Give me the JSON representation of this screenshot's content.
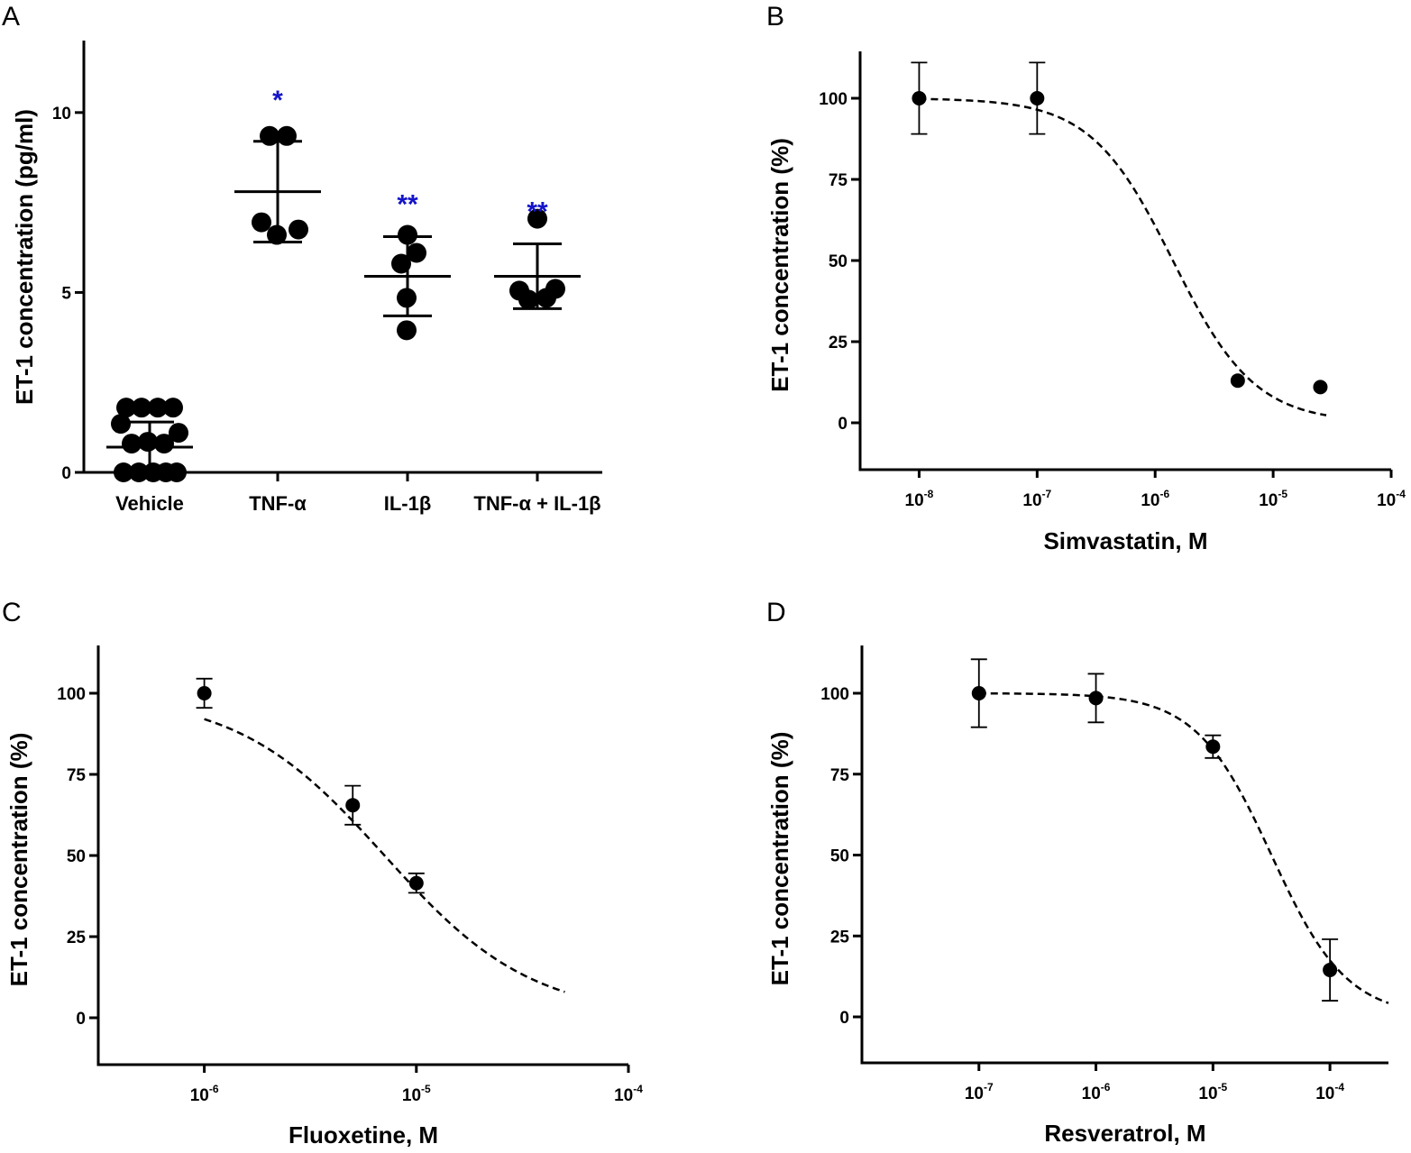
{
  "chart_data": [
    {
      "panel": "A",
      "type": "scatter",
      "ylabel": "ET-1 concentration (pg/ml)",
      "ylim": [
        0,
        12
      ],
      "yticks": [
        0,
        5,
        10
      ],
      "categories": [
        "Vehicle",
        "TNF-α",
        "IL-1β",
        "TNF-α + IL-1β"
      ],
      "groups": [
        {
          "name": "Vehicle",
          "mean": 0.7,
          "sd_low": 0.05,
          "sd_high": 1.4,
          "points": [
            {
              "offset": -0.26,
              "y": 1.8
            },
            {
              "offset": -0.09,
              "y": 1.8
            },
            {
              "offset": 0.09,
              "y": 1.8
            },
            {
              "offset": 0.26,
              "y": 1.8
            },
            {
              "offset": -0.32,
              "y": 1.35
            },
            {
              "offset": 0.32,
              "y": 1.1
            },
            {
              "offset": -0.2,
              "y": 0.8
            },
            {
              "offset": -0.02,
              "y": 0.85
            },
            {
              "offset": 0.16,
              "y": 0.8
            },
            {
              "offset": -0.29,
              "y": 0.0
            },
            {
              "offset": -0.12,
              "y": 0.0
            },
            {
              "offset": 0.04,
              "y": 0.0
            },
            {
              "offset": 0.18,
              "y": 0.0
            },
            {
              "offset": 0.3,
              "y": 0.0
            }
          ],
          "annotation": ""
        },
        {
          "name": "TNF-α",
          "mean": 7.8,
          "sd_low": 6.4,
          "sd_high": 9.2,
          "points": [
            {
              "offset": -0.09,
              "y": 9.35
            },
            {
              "offset": 0.1,
              "y": 9.35
            },
            {
              "offset": -0.18,
              "y": 6.95
            },
            {
              "offset": 0.23,
              "y": 6.75
            },
            {
              "offset": -0.01,
              "y": 6.6
            }
          ],
          "annotation": "*"
        },
        {
          "name": "IL-1β",
          "mean": 5.45,
          "sd_low": 4.35,
          "sd_high": 6.55,
          "points": [
            {
              "offset": 0.0,
              "y": 6.6
            },
            {
              "offset": -0.07,
              "y": 5.8
            },
            {
              "offset": 0.1,
              "y": 6.1
            },
            {
              "offset": -0.01,
              "y": 4.85
            },
            {
              "offset": -0.01,
              "y": 3.95
            }
          ],
          "annotation": "**"
        },
        {
          "name": "TNF-α + IL-1β",
          "mean": 5.45,
          "sd_low": 4.55,
          "sd_high": 6.35,
          "points": [
            {
              "offset": 0.0,
              "y": 7.05
            },
            {
              "offset": -0.2,
              "y": 5.05
            },
            {
              "offset": 0.2,
              "y": 5.1
            },
            {
              "offset": -0.1,
              "y": 4.8
            },
            {
              "offset": 0.1,
              "y": 4.85
            }
          ],
          "annotation": "**"
        }
      ]
    },
    {
      "panel": "B",
      "type": "scatter",
      "xlabel": "Simvastatin, M",
      "ylabel": "ET-1 concentration (%)",
      "xscale": "log",
      "xlim_exp": [
        -8.5,
        -4
      ],
      "ylim": [
        -15,
        115
      ],
      "xticks_exp": [
        -8,
        -7,
        -6,
        -5,
        -4
      ],
      "yticks": [
        0,
        25,
        50,
        75,
        100
      ],
      "points": [
        {
          "x_exp": -8.0,
          "y": 100,
          "err": 11
        },
        {
          "x_exp": -7.0,
          "y": 100,
          "err": 11
        },
        {
          "x_exp": -5.3,
          "y": 13,
          "err": 0
        },
        {
          "x_exp": -4.6,
          "y": 11,
          "err": 0
        }
      ],
      "fit": {
        "ic50_exp": -5.85,
        "hill": 1.25,
        "top": 100,
        "bottom": 0,
        "from_exp": -8.0,
        "to_exp": -4.55
      }
    },
    {
      "panel": "C",
      "type": "scatter",
      "xlabel": "Fluoxetine, M",
      "ylabel": "ET-1 concentration (%)",
      "xscale": "log",
      "xlim_exp": [
        -6.5,
        -4
      ],
      "ylim": [
        -15,
        115
      ],
      "xticks_exp": [
        -6,
        -5,
        -4
      ],
      "yticks": [
        0,
        25,
        50,
        75,
        100
      ],
      "points": [
        {
          "x_exp": -6.0,
          "y": 100,
          "err": 4.5
        },
        {
          "x_exp": -5.3,
          "y": 65.5,
          "err": 6
        },
        {
          "x_exp": -5.0,
          "y": 41.5,
          "err": 3
        }
      ],
      "fit": {
        "ic50_exp": -5.15,
        "hill": 1.25,
        "top": 100,
        "bottom": 0,
        "from_exp": -6.0,
        "to_exp": -4.3
      }
    },
    {
      "panel": "D",
      "type": "scatter",
      "xlabel": "Resveratrol, M",
      "ylabel": "ET-1 concentration (%)",
      "xscale": "log",
      "xlim_exp": [
        -8,
        -3.5
      ],
      "ylim": [
        -15,
        115
      ],
      "xticks_exp": [
        -7,
        -6,
        -5,
        -4
      ],
      "yticks": [
        0,
        25,
        50,
        75,
        100
      ],
      "points": [
        {
          "x_exp": -7.0,
          "y": 100,
          "err": 10.5
        },
        {
          "x_exp": -6.0,
          "y": 98.5,
          "err": 7.5
        },
        {
          "x_exp": -5.0,
          "y": 83.5,
          "err": 3.5
        },
        {
          "x_exp": -4.0,
          "y": 14.5,
          "err": 9.5
        }
      ],
      "fit": {
        "ic50_exp": -4.5,
        "hill": 1.35,
        "top": 100,
        "bottom": 0,
        "from_exp": -7.0,
        "to_exp": -3.5
      }
    }
  ]
}
